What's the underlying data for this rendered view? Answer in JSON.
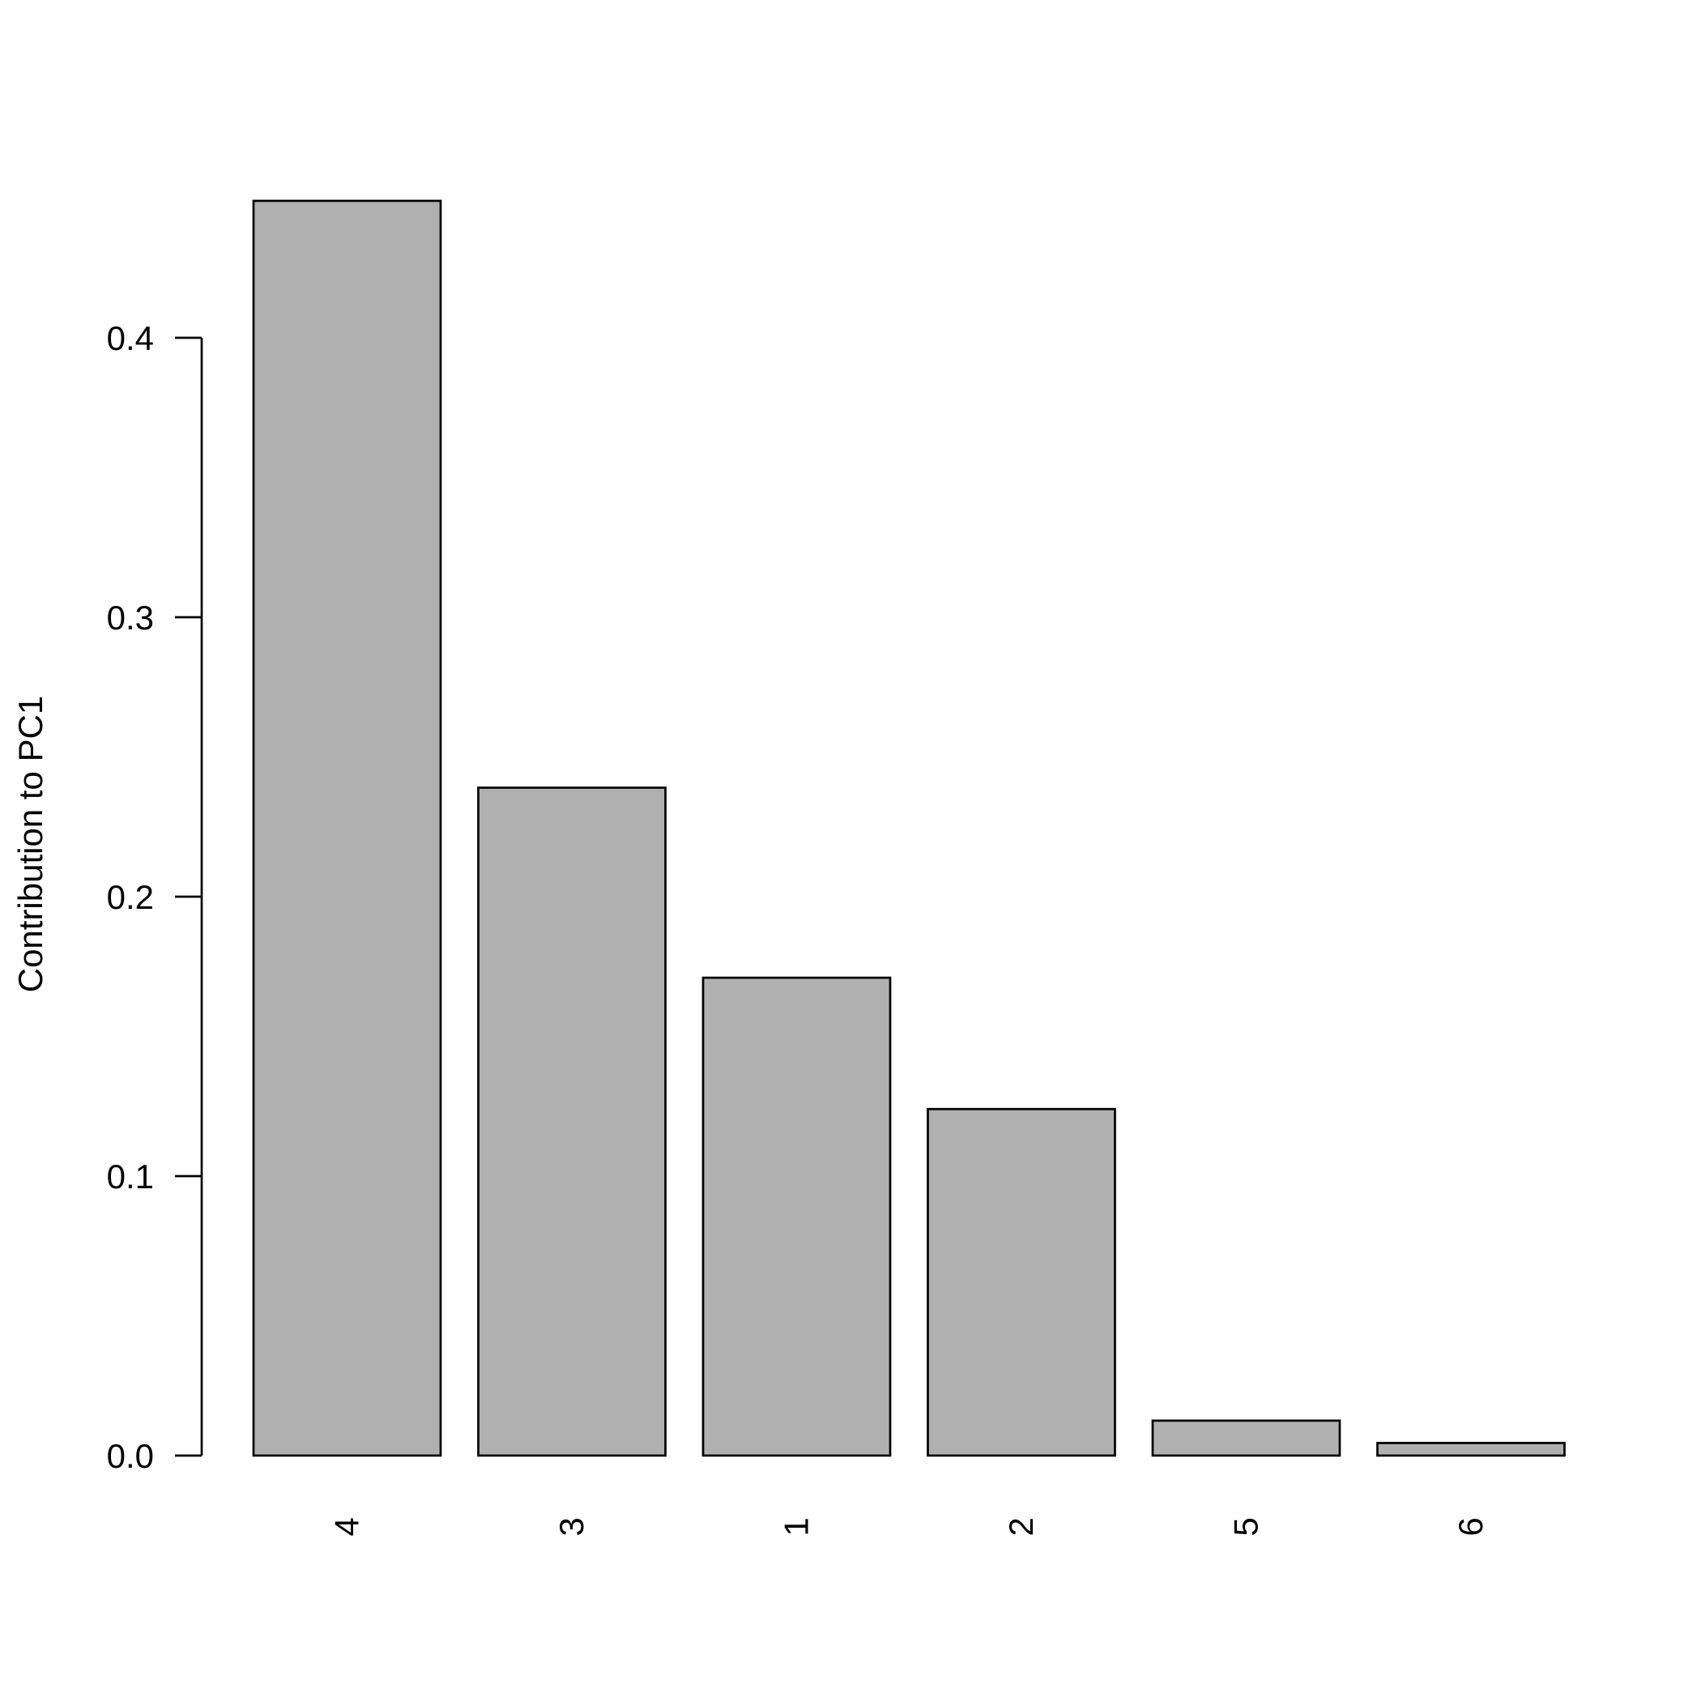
{
  "chart_data": {
    "type": "bar",
    "title": "",
    "xlabel": "",
    "ylabel": "Contribution to PC1",
    "categories": [
      "4",
      "3",
      "1",
      "2",
      "5",
      "6"
    ],
    "values": [
      0.449,
      0.239,
      0.171,
      0.124,
      0.0125,
      0.0045
    ],
    "ylim": [
      0,
      0.45
    ],
    "yticks": [
      0.0,
      0.1,
      0.2,
      0.3,
      0.4
    ],
    "ytick_labels": [
      "0.0",
      "0.1",
      "0.2",
      "0.3",
      "0.4"
    ],
    "bar_color": "#b0b0b0",
    "edge_color": "#000000",
    "grid": false,
    "x_labels_rotated": true
  }
}
